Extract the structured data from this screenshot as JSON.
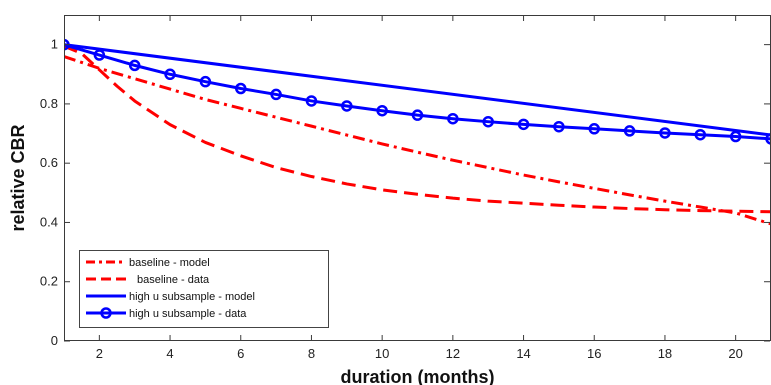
{
  "chart_data": {
    "type": "line",
    "title": "",
    "xlabel": "duration (months)",
    "ylabel": "relative CBR",
    "xlim": [
      1,
      21
    ],
    "ylim": [
      0,
      1.1
    ],
    "x_ticks": [
      2,
      4,
      6,
      8,
      10,
      12,
      14,
      16,
      18,
      20
    ],
    "y_ticks": [
      0,
      0.2,
      0.4,
      0.6,
      0.8,
      1
    ],
    "y_tick_labels": [
      "0",
      "0.2",
      "0.4",
      "0.6",
      "0.8",
      "1"
    ],
    "grid": false,
    "legend_position": "bottom-left",
    "series": [
      {
        "name": "baseline - model",
        "color": "#ff0000",
        "style": "dashdot",
        "marker": "none",
        "x": [
          1,
          2,
          3,
          4,
          5,
          6,
          7,
          8,
          9,
          10,
          11,
          12,
          13,
          14,
          15,
          16,
          17,
          18,
          19,
          20,
          21
        ],
        "y": [
          0.96,
          0.92,
          0.885,
          0.85,
          0.815,
          0.785,
          0.755,
          0.725,
          0.695,
          0.665,
          0.637,
          0.61,
          0.585,
          0.56,
          0.537,
          0.515,
          0.493,
          0.472,
          0.452,
          0.432,
          0.395
        ]
      },
      {
        "name": "baseline - data",
        "color": "#ff0000",
        "style": "dashed",
        "marker": "none",
        "x": [
          1,
          1.5,
          2,
          2.5,
          3,
          3.5,
          4,
          5,
          6,
          7,
          8,
          9,
          10,
          11,
          12,
          13,
          14,
          15,
          16,
          17,
          18,
          19,
          20,
          21
        ],
        "y": [
          0.995,
          0.97,
          0.915,
          0.86,
          0.81,
          0.77,
          0.73,
          0.67,
          0.625,
          0.585,
          0.555,
          0.53,
          0.51,
          0.495,
          0.482,
          0.472,
          0.465,
          0.458,
          0.452,
          0.447,
          0.443,
          0.44,
          0.438,
          0.436
        ]
      },
      {
        "name": "high u subsample - model",
        "color": "#0000ff",
        "style": "solid",
        "marker": "none",
        "x": [
          1,
          21
        ],
        "y": [
          1.0,
          0.695
        ]
      },
      {
        "name": "high u subsample - data",
        "color": "#0000ff",
        "style": "solid",
        "marker": "circle",
        "x": [
          1,
          2,
          3,
          4,
          5,
          6,
          7,
          8,
          9,
          10,
          11,
          12,
          13,
          14,
          15,
          16,
          17,
          18,
          19,
          20,
          21
        ],
        "y": [
          1.0,
          0.965,
          0.93,
          0.9,
          0.875,
          0.852,
          0.832,
          0.81,
          0.793,
          0.777,
          0.762,
          0.75,
          0.74,
          0.731,
          0.723,
          0.716,
          0.709,
          0.702,
          0.696,
          0.69,
          0.682
        ]
      }
    ]
  }
}
